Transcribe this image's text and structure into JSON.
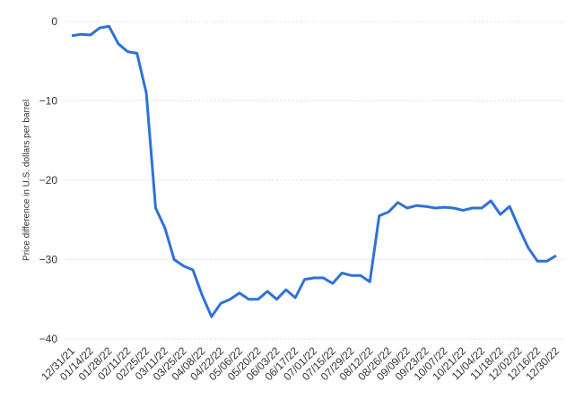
{
  "chart_data": {
    "type": "line",
    "y_label": "Price difference in U.S. dollars per barrel",
    "categories": [
      "12/31/21",
      null,
      "01/14/22",
      null,
      "01/28/22",
      null,
      "02/11/22",
      null,
      "02/25/22",
      null,
      "03/11/22",
      null,
      "03/25/22",
      null,
      "04/08/22",
      null,
      "04/22/22",
      null,
      "05/06/22",
      null,
      "05/20/22",
      null,
      "06/03/22",
      null,
      "06/17/22",
      null,
      "07/01/22",
      null,
      "07/15/22",
      null,
      "07/29/22",
      null,
      "08/12/22",
      null,
      "08/26/22",
      null,
      "09/09/22",
      null,
      "09/23/22",
      null,
      "10/07/22",
      null,
      "10/21/22",
      null,
      "11/04/22",
      null,
      "11/18/22",
      null,
      "12/02/22",
      null,
      "12/16/22",
      null,
      "12/30/22"
    ],
    "series": [
      {
        "name": "Price difference",
        "color": "#2f72d6",
        "values": [
          -1.8,
          -1.6,
          -1.7,
          -0.8,
          -0.6,
          -2.8,
          -3.8,
          -4,
          -9,
          -23.5,
          -26,
          -30,
          -30.8,
          -31.3,
          -34.5,
          -37.2,
          -35.5,
          -35,
          -34.2,
          -35,
          -35,
          -34,
          -35,
          -33.8,
          -34.8,
          -32.5,
          -32.3,
          -32.3,
          -33,
          -31.7,
          -32,
          -32,
          -32.8,
          -24.5,
          -24,
          -22.8,
          -23.5,
          -23.2,
          -23.3,
          -23.5,
          -23.4,
          -23.5,
          -23.8,
          -23.5,
          -23.5,
          -22.6,
          -24.3,
          -23.3,
          -26,
          -28.5,
          -30.2,
          -30.2,
          -29.5
        ]
      }
    ],
    "ylim": [
      -40,
      0
    ],
    "yticks": [
      {
        "value": -40,
        "label": "−40"
      },
      {
        "value": -30,
        "label": "−30"
      },
      {
        "value": -20,
        "label": "−20"
      },
      {
        "value": -10,
        "label": "−10"
      },
      0
    ],
    "grid": true
  }
}
